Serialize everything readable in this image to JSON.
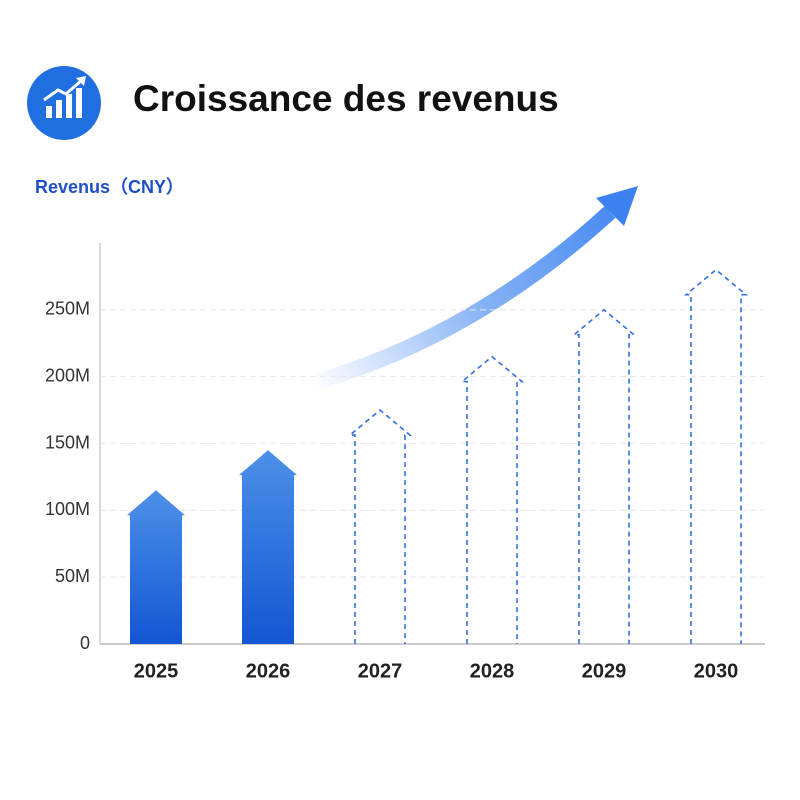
{
  "chart_data": {
    "type": "bar",
    "title": "Croissance des revenus",
    "y_label": "Revenus（CNY）",
    "categories": [
      "2025",
      "2026",
      "2027",
      "2028",
      "2029",
      "2030"
    ],
    "series": [
      {
        "color": "#1a5fd6",
        "dashed": false,
        "values": [
          115000000,
          145000000,
          null,
          null,
          null,
          null
        ]
      },
      {
        "color": "#2f6fe0",
        "dashed": true,
        "values": [
          null,
          null,
          175000000,
          215000000,
          250000000,
          280000000
        ]
      }
    ],
    "ylim": [
      0,
      300000000
    ],
    "yticks": [
      0,
      {
        "value": 50000000,
        "label": "50M"
      },
      {
        "value": 100000000,
        "label": "100M"
      },
      {
        "value": 150000000,
        "label": "150M"
      },
      {
        "value": 200000000,
        "label": "200M"
      },
      {
        "value": 250000000,
        "label": "250M"
      }
    ],
    "grid": true
  }
}
